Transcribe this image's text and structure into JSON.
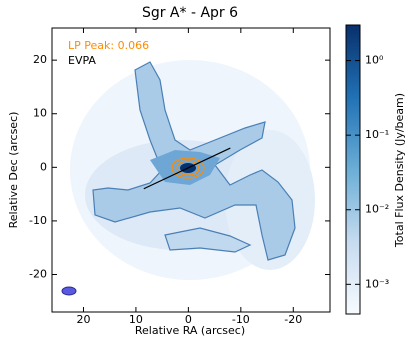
{
  "chart_data": {
    "type": "image",
    "title": "Sgr A* - Apr 6",
    "xlabel": "Relative RA (arcsec)",
    "ylabel": "Relative Dec (arcsec)",
    "xlim": [
      26,
      -27
    ],
    "xticks": [
      20,
      10,
      0,
      -10,
      -20
    ],
    "ylim": [
      -27,
      26
    ],
    "yticks": [
      -20,
      -10,
      0,
      10,
      20
    ],
    "colorbar": {
      "label": "Total Flux Density (Jy/beam)",
      "log": true,
      "clim": [
        0.0004,
        3
      ],
      "colors": [
        "#f7fbff",
        "#c6dbef",
        "#6baed6",
        "#2171b5",
        "#08306b"
      ],
      "ticks": [
        {
          "value": 0.001,
          "label": "10⁻³"
        },
        {
          "value": 0.01,
          "label": "10⁻²"
        },
        {
          "value": 0.1,
          "label": "10⁻¹"
        },
        {
          "value": 1,
          "label": "10⁰"
        }
      ]
    },
    "annotations": [
      {
        "text": "LP Peak: 0.066",
        "color": "#ff8c00"
      },
      {
        "text": "EVPA",
        "color": "#000000"
      }
    ],
    "evpa": {
      "x": [
        8.5,
        -8
      ],
      "y": [
        -4,
        3.6
      ]
    }
  }
}
